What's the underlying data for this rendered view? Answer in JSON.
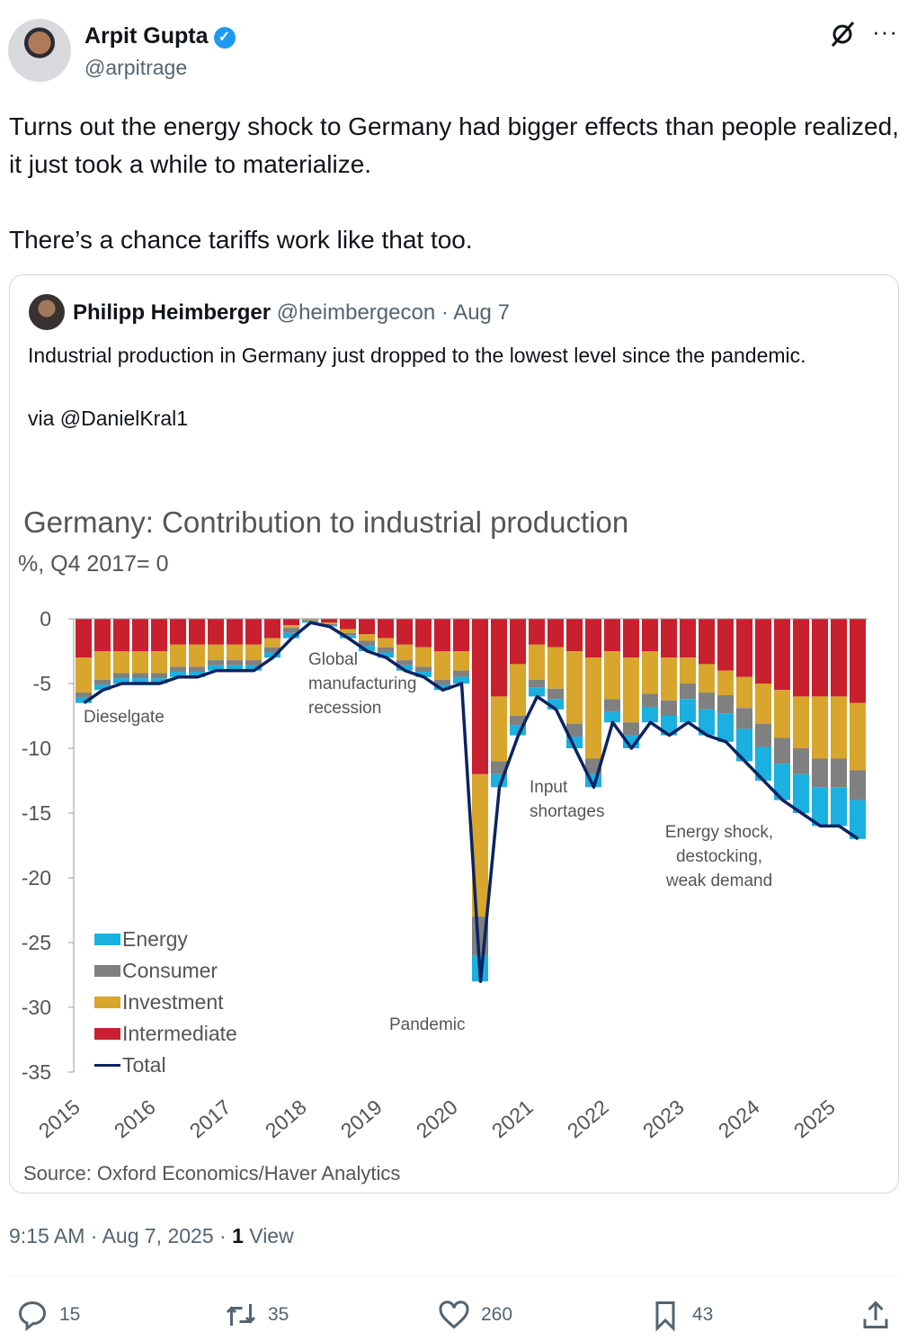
{
  "author": {
    "name": "Arpit Gupta",
    "handle": "@arpitrage"
  },
  "tweet": {
    "line1": "Turns out the energy shock to Germany had bigger effects than people realized, it just took a while to materialize.",
    "line2": "There’s a chance tariffs work like that too."
  },
  "quote": {
    "name": "Philipp Heimberger",
    "handle": "@heimbergecon",
    "sep": " · ",
    "date": "Aug 7",
    "text1": "Industrial production in Germany just dropped to the lowest level since the pandemic.",
    "text2": "via @DanielKral1"
  },
  "chart_data": {
    "type": "bar",
    "title": "Germany: Contribution to industrial production",
    "ylabel": "%, Q4 2017= 0",
    "ylim": [
      -35,
      0
    ],
    "yticks": [
      "0",
      "-5",
      "-10",
      "-15",
      "-20",
      "-25",
      "-30",
      "-35"
    ],
    "ytick_values": [
      0,
      -5,
      -10,
      -15,
      -20,
      -25,
      -30,
      -35
    ],
    "xticks": [
      "2015",
      "2016",
      "2017",
      "2018",
      "2019",
      "2020",
      "2021",
      "2022",
      "2023",
      "2024",
      "2025"
    ],
    "frequency": "quarterly (approx.)",
    "colors": {
      "Energy": "#1ab0e0",
      "Consumer": "#808080",
      "Investment": "#d8a62c",
      "Intermediate": "#c8202f",
      "Total": "#0b2361"
    },
    "series": [
      {
        "name": "Intermediate",
        "values": [
          -3,
          -2.5,
          -2.5,
          -2.5,
          -2.5,
          -2,
          -2,
          -2,
          -2,
          -2,
          -1.5,
          -0.5,
          0,
          -0.3,
          -0.8,
          -1.2,
          -1.5,
          -2,
          -2.2,
          -2.5,
          -2.5,
          -12,
          -6,
          -3.5,
          -2,
          -2.2,
          -2.5,
          -3,
          -2.5,
          -3,
          -2.5,
          -3,
          -3,
          -3.5,
          -4,
          -4.5,
          -5,
          -5.5,
          -6,
          -6,
          -6,
          -6.5
        ]
      },
      {
        "name": "Investment",
        "values": [
          -2.7,
          -2.2,
          -1.7,
          -1.7,
          -1.7,
          -1.7,
          -1.7,
          -1.2,
          -1.2,
          -1.2,
          -0.7,
          -0.2,
          -0.1,
          -0.1,
          -0.3,
          -0.5,
          -0.7,
          -1.2,
          -1.5,
          -2.2,
          -1.5,
          -11,
          -5,
          -4,
          -2.7,
          -3.2,
          -5.6,
          -7.8,
          -3.7,
          -5,
          -3.3,
          -3.3,
          -2,
          -2.2,
          -1.9,
          -2.4,
          -3.1,
          -3.7,
          -4,
          -4.8,
          -4.8,
          -5.2
        ]
      },
      {
        "name": "Consumer",
        "values": [
          -0.4,
          -0.4,
          -0.4,
          -0.4,
          -0.4,
          -0.4,
          -0.4,
          -0.4,
          -0.4,
          -0.4,
          -0.4,
          -0.4,
          -0.1,
          -0.1,
          -0.2,
          -0.4,
          -0.4,
          -0.4,
          -0.4,
          -0.4,
          -0.5,
          -3,
          -1,
          -0.7,
          -0.6,
          -0.8,
          -1,
          -1.2,
          -1,
          -1,
          -1,
          -1.2,
          -1.2,
          -1.3,
          -1.4,
          -1.6,
          -1.8,
          -2,
          -2,
          -2.2,
          -2.2,
          -2.3
        ]
      },
      {
        "name": "Energy",
        "values": [
          -0.4,
          -0.4,
          -0.4,
          -0.4,
          -0.4,
          -0.4,
          -0.4,
          -0.4,
          -0.4,
          -0.4,
          -0.4,
          -0.4,
          -0.1,
          -0.1,
          -0.2,
          -0.4,
          -0.4,
          -0.4,
          -0.4,
          -0.4,
          -0.5,
          -2,
          -1,
          -0.8,
          -0.7,
          -0.8,
          -0.9,
          -1,
          -0.8,
          -1,
          -1.2,
          -1.5,
          -1.8,
          -2,
          -2.2,
          -2.5,
          -2.6,
          -2.8,
          -3,
          -3,
          -3,
          -3
        ]
      },
      {
        "name": "Total",
        "values": [
          -6.5,
          -5.5,
          -5,
          -5,
          -5,
          -4.5,
          -4.5,
          -4,
          -4,
          -4,
          -3,
          -1.5,
          -0.3,
          -0.6,
          -1.5,
          -2.5,
          -3,
          -4,
          -4.5,
          -5.5,
          -5,
          -28,
          -13,
          -9,
          -6,
          -7,
          -10,
          -13,
          -8,
          -10,
          -8,
          -9,
          -8,
          -9,
          -9.5,
          -11,
          -12.5,
          -14,
          -15,
          -16,
          -16,
          -17
        ]
      }
    ],
    "legend": [
      "Energy",
      "Consumer",
      "Investment",
      "Intermediate",
      "Total"
    ],
    "legend_position": "bottom-left",
    "annotations": {
      "dieselgate": "Dieselgate",
      "global1": "Global",
      "global2": "manufacturing",
      "global3": "recession",
      "pandemic": "Pandemic",
      "input1": "Input",
      "input2": "shortages",
      "energy1": "Energy shock,",
      "energy2": "destocking,",
      "energy3": "weak demand"
    },
    "source": "Source: Oxford Economics/Haver Analytics"
  },
  "meta": {
    "time": "9:15 AM",
    "sep": " · ",
    "date": "Aug 7, 2025",
    "views_count": "1",
    "views_label": " View"
  },
  "actions": {
    "replies": "15",
    "reposts": "35",
    "likes": "260",
    "bookmarks": "43"
  }
}
